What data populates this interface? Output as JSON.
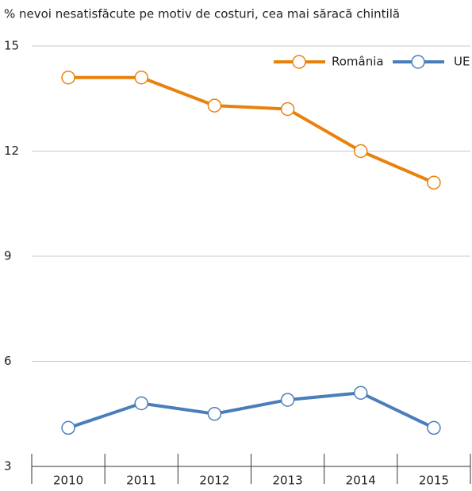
{
  "chart_data": {
    "type": "line",
    "title": "% nevoi nesatisfăcute pe motiv de costuri, cea mai săracă chintilă",
    "categories": [
      "2010",
      "2011",
      "2012",
      "2013",
      "2014",
      "2015"
    ],
    "series": [
      {
        "name": "România",
        "color": "#e8820c",
        "values": [
          14.1,
          14.1,
          13.3,
          13.2,
          12.0,
          11.1
        ]
      },
      {
        "name": "UE",
        "color": "#4a7ebb",
        "values": [
          4.1,
          4.8,
          4.5,
          4.9,
          5.1,
          4.1
        ]
      }
    ],
    "ylim": [
      3,
      15
    ],
    "yticks": [
      3,
      6,
      9,
      12,
      15
    ],
    "grid": true,
    "legend": "top-right"
  }
}
